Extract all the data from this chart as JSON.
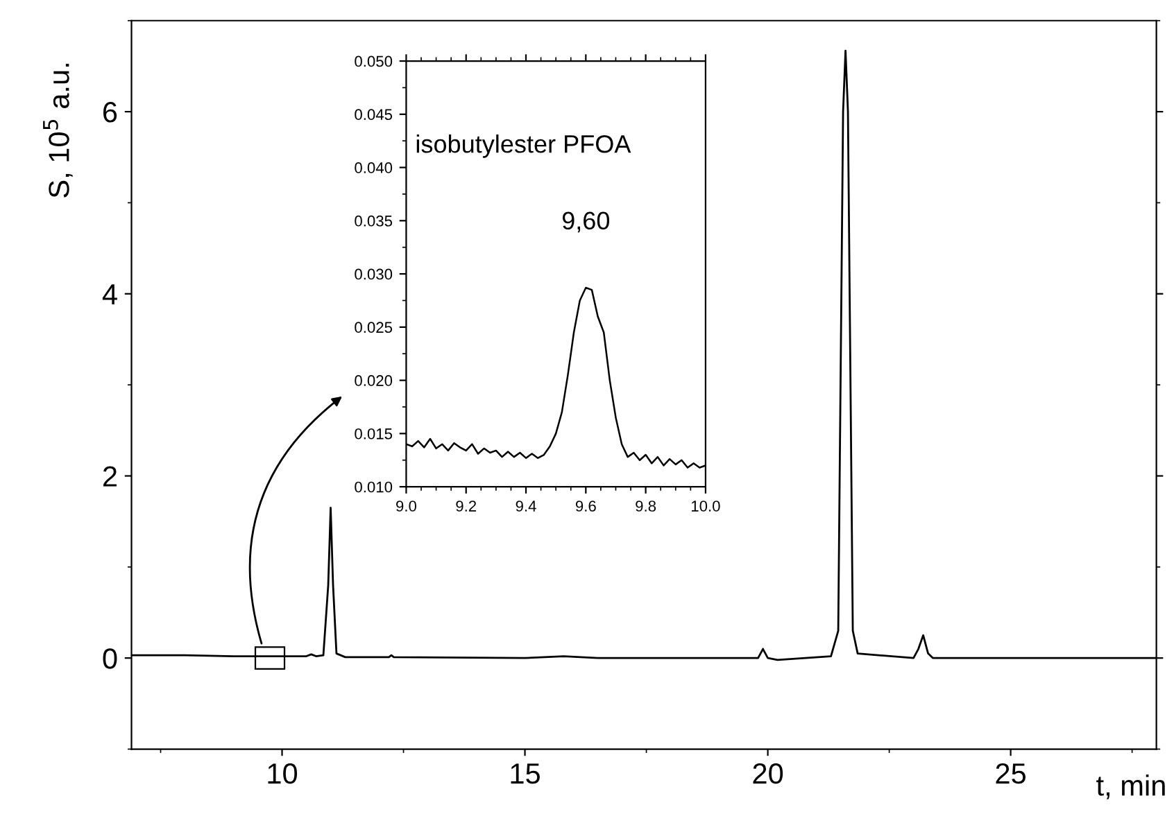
{
  "chart_data": [
    {
      "type": "line",
      "xlabel": "t, min",
      "ylabel": "S, 10$^{5}$ a.u.",
      "xlim": [
        6.9,
        28
      ],
      "ylim": [
        -1,
        7
      ],
      "xticks": [
        10,
        15,
        20,
        25
      ],
      "yticks": [
        0,
        2,
        4,
        6
      ],
      "grid": false,
      "legend": false,
      "marker": "none",
      "line_style": "solid",
      "series": [
        {
          "color": "#000000",
          "x": [
            6.9,
            8,
            9,
            9.6,
            10.5,
            10.6,
            10.7,
            10.85,
            10.95,
            11.0,
            11.05,
            11.12,
            11.3,
            12.2,
            12.25,
            12.3,
            15,
            15.8,
            16.5,
            19.8,
            19.9,
            20.0,
            20.2,
            21.3,
            21.45,
            21.55,
            21.6,
            21.65,
            21.75,
            21.85,
            23.0,
            23.1,
            23.2,
            23.3,
            23.4,
            28
          ],
          "values": [
            0.03,
            0.03,
            0.02,
            0.02,
            0.02,
            0.04,
            0.02,
            0.03,
            0.8,
            1.65,
            0.8,
            0.05,
            0.01,
            0.01,
            0.03,
            0.01,
            0.0,
            0.02,
            0.0,
            0.0,
            0.1,
            0.0,
            -0.02,
            0.02,
            0.3,
            6.0,
            6.67,
            6.0,
            0.3,
            0.05,
            0.0,
            0.1,
            0.25,
            0.05,
            0.0,
            0.0
          ]
        }
      ]
    },
    {
      "type": "line",
      "xlim": [
        9.0,
        10.0
      ],
      "ylim": [
        0.01,
        0.05
      ],
      "xticks": [
        {
          "value": 9.0,
          "label": "9.0"
        },
        9.2,
        9.4,
        9.6,
        9.8,
        {
          "value": 10.0,
          "label": "10.0"
        }
      ],
      "yticks": [
        {
          "value": 0.01,
          "label": "0.010"
        },
        0.015,
        {
          "value": 0.02,
          "label": "0.020"
        },
        0.025,
        {
          "value": 0.03,
          "label": "0.030"
        },
        0.035,
        {
          "value": 0.04,
          "label": "0.040"
        },
        0.045,
        {
          "value": 0.05,
          "label": "0.050"
        }
      ],
      "grid": false,
      "legend": false,
      "marker": "none",
      "line_style": "solid",
      "annotations": [
        "isobutylester PFOA",
        "9,60"
      ],
      "series": [
        {
          "color": "#000000",
          "x": [
            9.0,
            9.02,
            9.04,
            9.06,
            9.08,
            9.1,
            9.12,
            9.14,
            9.16,
            9.18,
            9.2,
            9.22,
            9.24,
            9.26,
            9.28,
            9.3,
            9.32,
            9.34,
            9.36,
            9.38,
            9.4,
            9.42,
            9.44,
            9.46,
            9.48,
            9.5,
            9.52,
            9.54,
            9.56,
            9.58,
            9.6,
            9.62,
            9.64,
            9.66,
            9.68,
            9.7,
            9.72,
            9.74,
            9.76,
            9.78,
            9.8,
            9.82,
            9.84,
            9.86,
            9.88,
            9.9,
            9.92,
            9.94,
            9.96,
            9.98,
            10.0
          ],
          "values": [
            0.014,
            0.0138,
            0.0143,
            0.0137,
            0.0145,
            0.0136,
            0.014,
            0.0134,
            0.0141,
            0.0137,
            0.0134,
            0.014,
            0.0131,
            0.0136,
            0.0132,
            0.0134,
            0.0128,
            0.0133,
            0.0128,
            0.0132,
            0.0127,
            0.0131,
            0.0127,
            0.013,
            0.0138,
            0.015,
            0.017,
            0.0205,
            0.0245,
            0.0275,
            0.0287,
            0.0285,
            0.026,
            0.0245,
            0.02,
            0.0165,
            0.014,
            0.0128,
            0.0132,
            0.0125,
            0.013,
            0.0122,
            0.0128,
            0.012,
            0.0126,
            0.0121,
            0.0125,
            0.0118,
            0.0122,
            0.0118,
            0.012
          ]
        }
      ]
    }
  ]
}
